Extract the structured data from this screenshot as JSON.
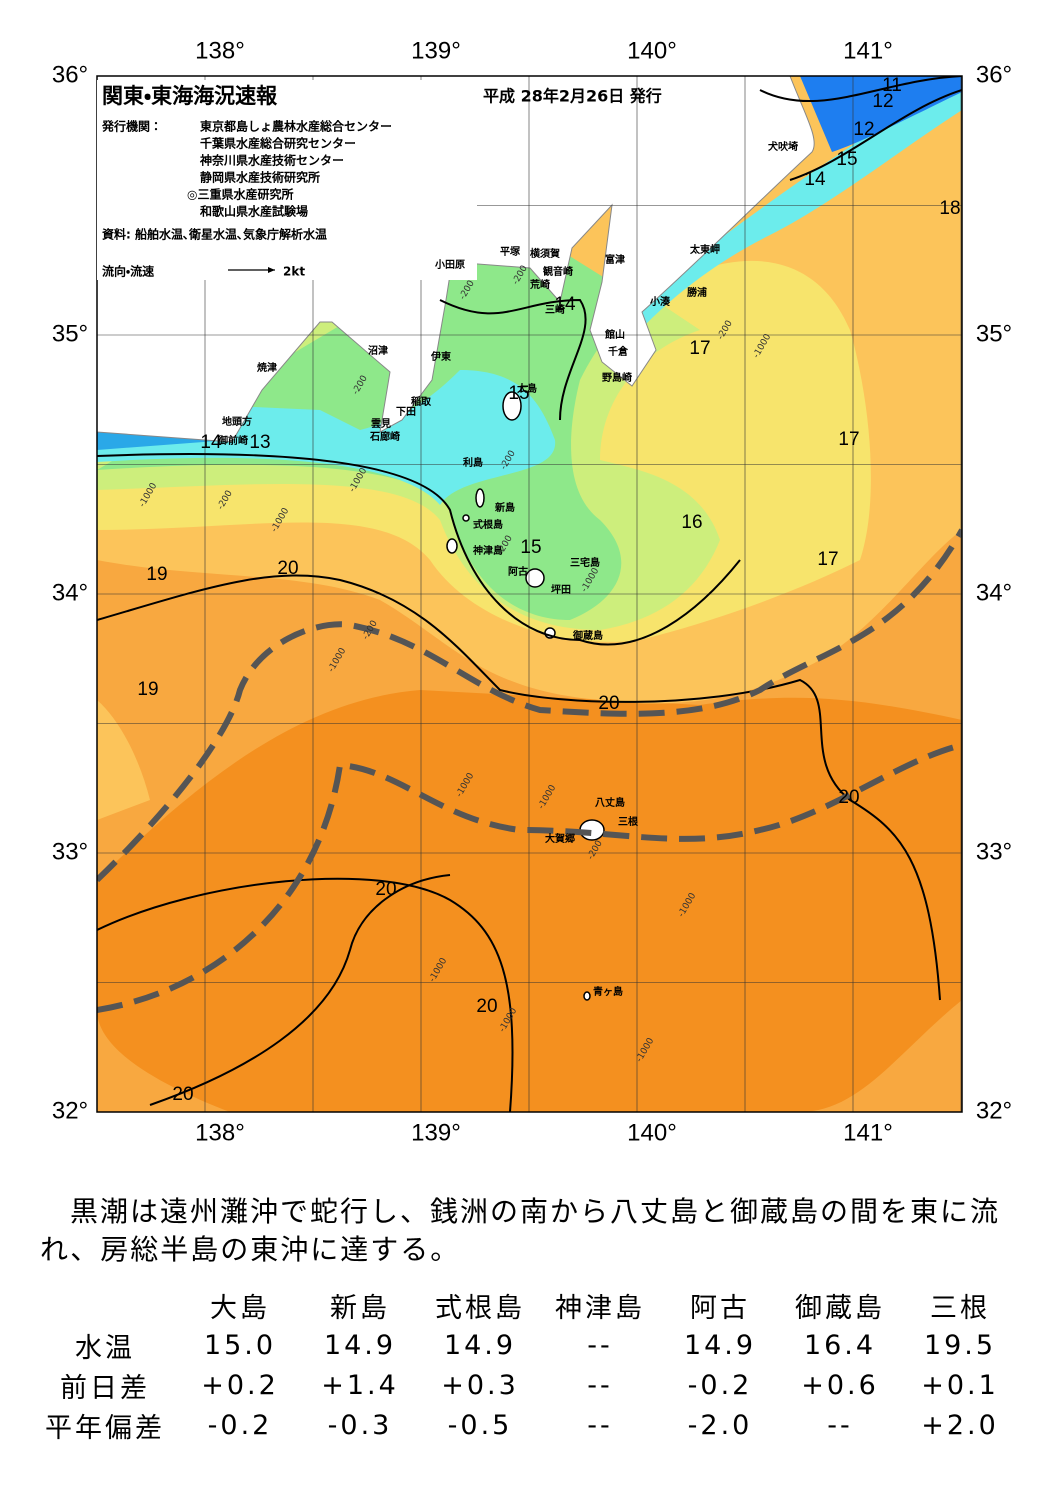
{
  "map": {
    "title": "関東・東海海況速報",
    "date": "平成 28年2月26日 発行",
    "publisher_label": "発行機関：",
    "publishers": [
      "東京都島しょ農林水産総合センター",
      "千葉県水産総合研究センター",
      "神奈川県水産技術センター",
      "静岡県水産技術研究所",
      "◎三重県水産研究所",
      "和歌山県水産試験場"
    ],
    "source": "資料: 船舶水温､衛星水温､気象庁解析水温",
    "flow_label": "流向・流速",
    "flow_unit": "2kt",
    "lon_labels": [
      "138°",
      "139°",
      "140°",
      "141°"
    ],
    "lat_labels": [
      "36°",
      "35°",
      "34°",
      "33°",
      "32°"
    ],
    "places": [
      "犬吠埼",
      "太東岬",
      "富津",
      "横須賀",
      "平塚",
      "小田原",
      "観音崎",
      "荒崎",
      "勝浦",
      "小湊",
      "三崎",
      "館山",
      "千倉",
      "野島崎",
      "沼津",
      "伊東",
      "焼津",
      "稲取",
      "下田",
      "雲見",
      "石廊崎",
      "地頭方",
      "御前崎",
      "大島",
      "利島",
      "新島",
      "式根島",
      "神津島",
      "阿古",
      "三宅島",
      "坪田",
      "御蔵島",
      "八丈島",
      "三根",
      "大賀郷",
      "青ヶ島"
    ],
    "isotherm_labels": [
      11,
      12,
      12,
      15,
      14,
      18,
      14,
      15,
      17,
      14,
      13,
      17,
      16,
      15,
      17,
      19,
      20,
      19,
      20,
      20,
      20,
      20,
      20
    ],
    "depth_labels": [
      -200,
      -200,
      -200,
      -1000,
      -200,
      -200,
      -1000,
      -1000,
      -200,
      -1000,
      -1000,
      -200,
      -200,
      -1000,
      -1000,
      -1000,
      -1000,
      -200,
      -1000,
      -1000,
      -1000
    ]
  },
  "summary": "黒潮は遠州灘沖で蛇行し、銭洲の南から八丈島と御蔵島の間を東に流れ、房総半島の東沖に達する。",
  "table": {
    "columns": [
      "大島",
      "新島",
      "式根島",
      "神津島",
      "阿古",
      "御蔵島",
      "三根"
    ],
    "rows": [
      {
        "label": "水温",
        "cells": [
          "15.0",
          "14.9",
          "14.9",
          "--",
          "14.9",
          "16.4",
          "19.5"
        ]
      },
      {
        "label": "前日差",
        "cells": [
          "+0.2",
          "+1.4",
          "+0.3",
          "--",
          "-0.2",
          "+0.6",
          "+0.1"
        ]
      },
      {
        "label": "平年偏差",
        "cells": [
          "-0.2",
          "-0.3",
          "-0.5",
          "--",
          "-2.0",
          "--",
          "+2.0"
        ]
      }
    ]
  }
}
